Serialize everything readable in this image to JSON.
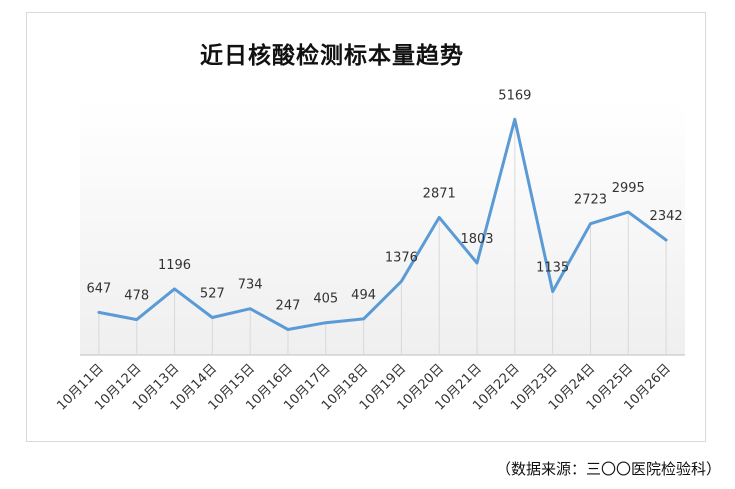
{
  "chart_data": {
    "type": "line",
    "title": "近日核酸检测标本量趋势",
    "categories": [
      "10月11日",
      "10月12日",
      "10月13日",
      "10月14日",
      "10月15日",
      "10月16日",
      "10月17日",
      "10月18日",
      "10月19日",
      "10月20日",
      "10月21日",
      "10月22日",
      "10月23日",
      "10月24日",
      "10月25日",
      "10月26日"
    ],
    "series": [
      {
        "values": [
          647,
          478,
          1196,
          527,
          734,
          247,
          405,
          494,
          1376,
          2871,
          1803,
          5169,
          1135,
          2723,
          2995,
          2342
        ]
      }
    ],
    "ylim": [
      0,
      5200
    ],
    "grid": false,
    "line_color": "#5b9bd5",
    "background_color": "#f2f2f2"
  },
  "source_note": "（数据来源：三〇〇医院检验科）"
}
